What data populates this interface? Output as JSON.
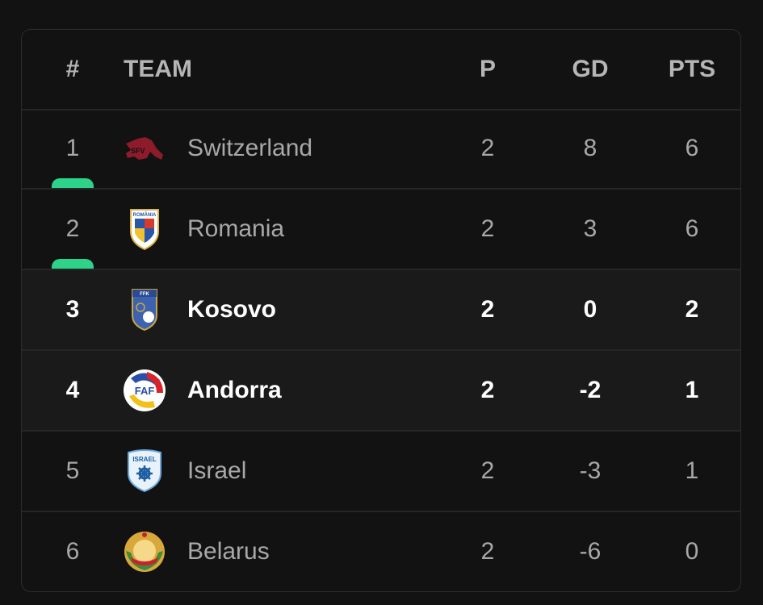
{
  "header": {
    "rank": "#",
    "team": "TEAM",
    "played": "P",
    "goal_diff": "GD",
    "points": "PTS"
  },
  "colors": {
    "qualification": "#2ed38a",
    "background": "#121212",
    "highlight_row": "#1a1a1a"
  },
  "rows": [
    {
      "rank": "1",
      "team": "Switzerland",
      "played": "2",
      "gd": "8",
      "pts": "6",
      "logo": "switzerland-crest-icon",
      "qualified": true,
      "highlighted": false
    },
    {
      "rank": "2",
      "team": "Romania",
      "played": "2",
      "gd": "3",
      "pts": "6",
      "logo": "romania-crest-icon",
      "logo_text": "ROMÂNIA",
      "qualified": true,
      "highlighted": false
    },
    {
      "rank": "3",
      "team": "Kosovo",
      "played": "2",
      "gd": "0",
      "pts": "2",
      "logo": "kosovo-crest-icon",
      "logo_text": "FFK",
      "qualified": false,
      "highlighted": true
    },
    {
      "rank": "4",
      "team": "Andorra",
      "played": "2",
      "gd": "-2",
      "pts": "1",
      "logo": "andorra-crest-icon",
      "logo_text": "FAF",
      "qualified": false,
      "highlighted": true
    },
    {
      "rank": "5",
      "team": "Israel",
      "played": "2",
      "gd": "-3",
      "pts": "1",
      "logo": "israel-crest-icon",
      "logo_text": "ISRAEL",
      "qualified": false,
      "highlighted": false
    },
    {
      "rank": "6",
      "team": "Belarus",
      "played": "2",
      "gd": "-6",
      "pts": "0",
      "logo": "belarus-crest-icon",
      "qualified": false,
      "highlighted": false
    }
  ]
}
